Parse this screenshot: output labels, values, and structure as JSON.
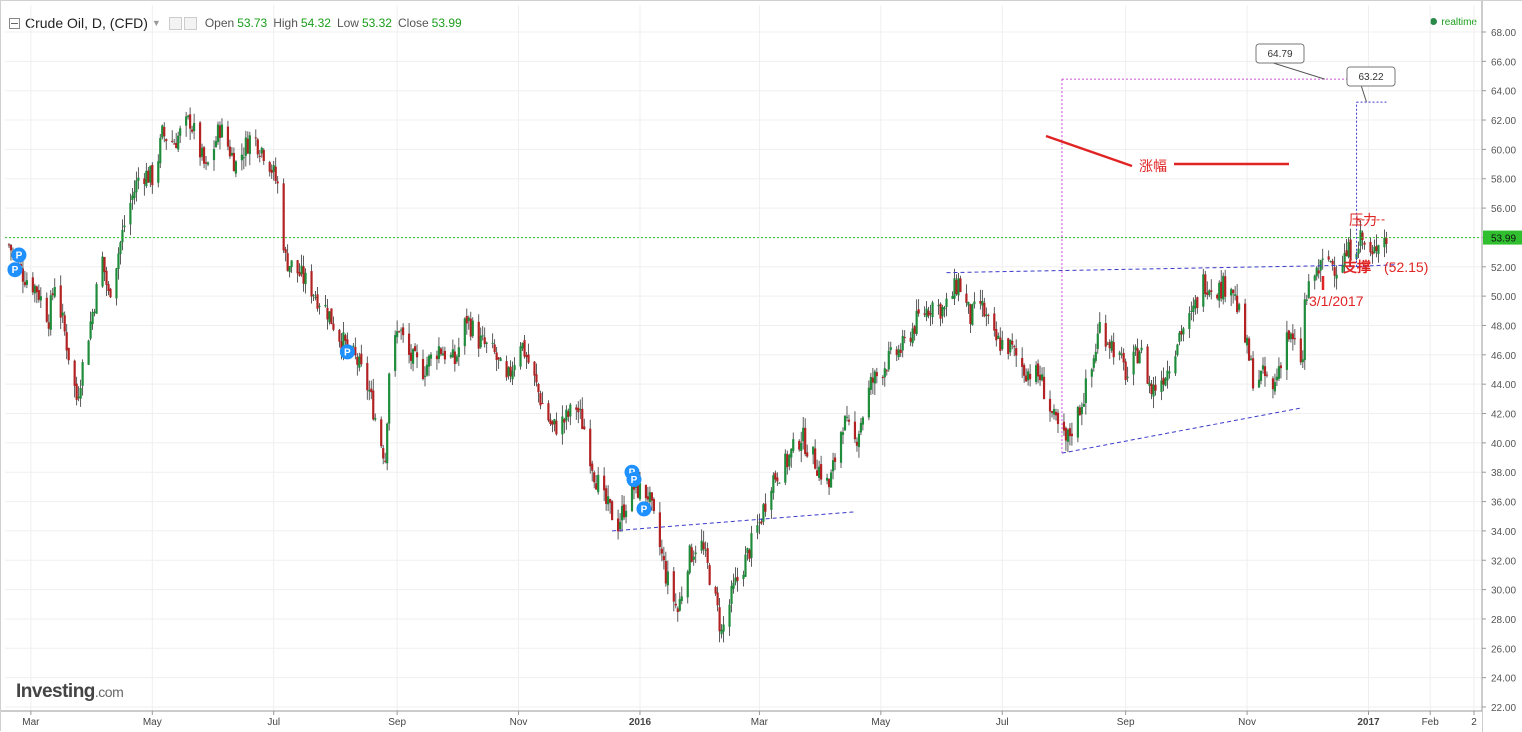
{
  "legend": {
    "title": "Crude Oil, D, (CFD)",
    "open_label": "Open",
    "open_value": "53.73",
    "high_label": "High",
    "high_value": "54.32",
    "low_label": "Low",
    "low_value": "53.32",
    "close_label": "Close",
    "close_value": "53.99"
  },
  "realtime_label": "realtime",
  "brand": {
    "name": "Investing",
    "suffix": ".com"
  },
  "colors": {
    "up": "#1e8c3a",
    "down": "#b22222",
    "grid": "#efefef",
    "last_price_line": "#2fbf2f",
    "trendline": "#3a3acb",
    "projection": "#c64ed6",
    "annotation": "#e02424",
    "marker": "#1e90ff"
  },
  "chart_data": {
    "type": "candlestick",
    "y_axis": {
      "min": 22,
      "max": 68,
      "ticks": [
        "22.00",
        "24.00",
        "26.00",
        "28.00",
        "30.00",
        "32.00",
        "34.00",
        "36.00",
        "38.00",
        "40.00",
        "42.00",
        "44.00",
        "46.00",
        "48.00",
        "50.00",
        "52.00",
        "54.00",
        "56.00",
        "58.00",
        "60.00",
        "62.00",
        "64.00",
        "66.00",
        "68.00"
      ]
    },
    "x_axis": {
      "start": "2015-02-16",
      "end": "2017-02-23",
      "ticks": [
        {
          "label": "Mar",
          "date": "2015-03-01",
          "bold": false
        },
        {
          "label": "May",
          "date": "2015-05-01",
          "bold": false
        },
        {
          "label": "Jul",
          "date": "2015-07-01",
          "bold": false
        },
        {
          "label": "Sep",
          "date": "2015-09-01",
          "bold": false
        },
        {
          "label": "Nov",
          "date": "2015-11-01",
          "bold": false
        },
        {
          "label": "2016",
          "date": "2016-01-01",
          "bold": true
        },
        {
          "label": "Mar",
          "date": "2016-03-01",
          "bold": false
        },
        {
          "label": "May",
          "date": "2016-05-01",
          "bold": false
        },
        {
          "label": "Jul",
          "date": "2016-07-01",
          "bold": false
        },
        {
          "label": "Sep",
          "date": "2016-09-01",
          "bold": false
        },
        {
          "label": "Nov",
          "date": "2016-11-01",
          "bold": false
        },
        {
          "label": "2017",
          "date": "2017-01-01",
          "bold": true
        },
        {
          "label": "Feb",
          "date": "2017-02-01",
          "bold": false
        },
        {
          "label": "2",
          "date": "2017-02-23",
          "bold": false
        }
      ]
    },
    "price_path": [
      {
        "date": "2015-02-18",
        "close": 53.5
      },
      {
        "date": "2015-02-25",
        "close": 51.5
      },
      {
        "date": "2015-03-04",
        "close": 50.5
      },
      {
        "date": "2015-03-10",
        "close": 48.5
      },
      {
        "date": "2015-03-13",
        "close": 51.0
      },
      {
        "date": "2015-03-18",
        "close": 47.5
      },
      {
        "date": "2015-03-24",
        "close": 43.0
      },
      {
        "date": "2015-03-30",
        "close": 47.5
      },
      {
        "date": "2015-04-06",
        "close": 52.5
      },
      {
        "date": "2015-04-09",
        "close": 50.0
      },
      {
        "date": "2015-04-14",
        "close": 53.0
      },
      {
        "date": "2015-04-18",
        "close": 55.5
      },
      {
        "date": "2015-04-25",
        "close": 58.5
      },
      {
        "date": "2015-05-02",
        "close": 58.0
      },
      {
        "date": "2015-05-06",
        "close": 61.0
      },
      {
        "date": "2015-05-12",
        "close": 60.5
      },
      {
        "date": "2015-05-20",
        "close": 62.0
      },
      {
        "date": "2015-05-28",
        "close": 58.5
      },
      {
        "date": "2015-06-04",
        "close": 61.5
      },
      {
        "date": "2015-06-12",
        "close": 59.0
      },
      {
        "date": "2015-06-20",
        "close": 61.0
      },
      {
        "date": "2015-06-28",
        "close": 59.5
      },
      {
        "date": "2015-07-03",
        "close": 57.5
      },
      {
        "date": "2015-07-07",
        "close": 52.5
      },
      {
        "date": "2015-07-14",
        "close": 51.5
      },
      {
        "date": "2015-07-20",
        "close": 50.5
      },
      {
        "date": "2015-07-28",
        "close": 49.0
      },
      {
        "date": "2015-08-04",
        "close": 47.0
      },
      {
        "date": "2015-08-12",
        "close": 45.5
      },
      {
        "date": "2015-08-18",
        "close": 43.5
      },
      {
        "date": "2015-08-24",
        "close": 40.0
      },
      {
        "date": "2015-08-26",
        "close": 39.0
      },
      {
        "date": "2015-08-28",
        "close": 45.0
      },
      {
        "date": "2015-09-02",
        "close": 48.0
      },
      {
        "date": "2015-09-06",
        "close": 46.0
      },
      {
        "date": "2015-09-14",
        "close": 45.0
      },
      {
        "date": "2015-09-22",
        "close": 46.5
      },
      {
        "date": "2015-09-30",
        "close": 45.5
      },
      {
        "date": "2015-10-06",
        "close": 48.5
      },
      {
        "date": "2015-10-12",
        "close": 47.0
      },
      {
        "date": "2015-10-20",
        "close": 46.0
      },
      {
        "date": "2015-10-26",
        "close": 44.0
      },
      {
        "date": "2015-11-02",
        "close": 47.0
      },
      {
        "date": "2015-11-06",
        "close": 45.5
      },
      {
        "date": "2015-11-12",
        "close": 43.0
      },
      {
        "date": "2015-11-18",
        "close": 41.0
      },
      {
        "date": "2015-11-24",
        "close": 41.5
      },
      {
        "date": "2015-11-30",
        "close": 42.5
      },
      {
        "date": "2015-12-04",
        "close": 41.0
      },
      {
        "date": "2015-12-09",
        "close": 38.0
      },
      {
        "date": "2015-12-14",
        "close": 36.0
      },
      {
        "date": "2015-12-21",
        "close": 34.5
      },
      {
        "date": "2015-12-28",
        "close": 37.0
      },
      {
        "date": "2016-01-05",
        "close": 36.5
      },
      {
        "date": "2016-01-10",
        "close": 33.5
      },
      {
        "date": "2016-01-14",
        "close": 31.0
      },
      {
        "date": "2016-01-20",
        "close": 28.5
      },
      {
        "date": "2016-01-25",
        "close": 32.0
      },
      {
        "date": "2016-01-31",
        "close": 33.5
      },
      {
        "date": "2016-02-05",
        "close": 31.0
      },
      {
        "date": "2016-02-09",
        "close": 28.5
      },
      {
        "date": "2016-02-11",
        "close": 27.0
      },
      {
        "date": "2016-02-17",
        "close": 30.0
      },
      {
        "date": "2016-02-23",
        "close": 32.0
      },
      {
        "date": "2016-03-01",
        "close": 34.5
      },
      {
        "date": "2016-03-07",
        "close": 37.5
      },
      {
        "date": "2016-03-14",
        "close": 38.5
      },
      {
        "date": "2016-03-22",
        "close": 40.5
      },
      {
        "date": "2016-03-30",
        "close": 38.5
      },
      {
        "date": "2016-04-05",
        "close": 37.0
      },
      {
        "date": "2016-04-12",
        "close": 41.5
      },
      {
        "date": "2016-04-18",
        "close": 40.0
      },
      {
        "date": "2016-04-26",
        "close": 44.0
      },
      {
        "date": "2016-05-04",
        "close": 45.5
      },
      {
        "date": "2016-05-12",
        "close": 46.5
      },
      {
        "date": "2016-05-20",
        "close": 48.5
      },
      {
        "date": "2016-05-27",
        "close": 49.5
      },
      {
        "date": "2016-06-02",
        "close": 49.0
      },
      {
        "date": "2016-06-09",
        "close": 51.0
      },
      {
        "date": "2016-06-15",
        "close": 48.5
      },
      {
        "date": "2016-06-20",
        "close": 49.5
      },
      {
        "date": "2016-06-27",
        "close": 47.0
      },
      {
        "date": "2016-07-05",
        "close": 46.5
      },
      {
        "date": "2016-07-12",
        "close": 45.0
      },
      {
        "date": "2016-07-20",
        "close": 44.5
      },
      {
        "date": "2016-07-27",
        "close": 41.5
      },
      {
        "date": "2016-08-02",
        "close": 40.0
      },
      {
        "date": "2016-08-08",
        "close": 42.0
      },
      {
        "date": "2016-08-15",
        "close": 45.0
      },
      {
        "date": "2016-08-19",
        "close": 48.0
      },
      {
        "date": "2016-08-26",
        "close": 46.5
      },
      {
        "date": "2016-09-02",
        "close": 44.5
      },
      {
        "date": "2016-09-08",
        "close": 46.5
      },
      {
        "date": "2016-09-14",
        "close": 43.5
      },
      {
        "date": "2016-09-22",
        "close": 45.0
      },
      {
        "date": "2016-09-28",
        "close": 47.5
      },
      {
        "date": "2016-10-04",
        "close": 48.5
      },
      {
        "date": "2016-10-10",
        "close": 51.0
      },
      {
        "date": "2016-10-18",
        "close": 50.5
      },
      {
        "date": "2016-10-24",
        "close": 51.0
      },
      {
        "date": "2016-10-31",
        "close": 47.0
      },
      {
        "date": "2016-11-04",
        "close": 44.5
      },
      {
        "date": "2016-11-10",
        "close": 44.5
      },
      {
        "date": "2016-11-14",
        "close": 43.5
      },
      {
        "date": "2016-11-21",
        "close": 47.5
      },
      {
        "date": "2016-11-29",
        "close": 45.5
      },
      {
        "date": "2016-11-30",
        "close": 49.5
      },
      {
        "date": "2016-12-05",
        "close": 51.5
      },
      {
        "date": "2016-12-12",
        "close": 52.5
      },
      {
        "date": "2016-12-16",
        "close": 52.0
      },
      {
        "date": "2016-12-22",
        "close": 53.0
      },
      {
        "date": "2016-12-28",
        "close": 54.0
      },
      {
        "date": "2017-01-03",
        "close": 52.5
      },
      {
        "date": "2017-01-06",
        "close": 54.0
      },
      {
        "date": "2017-01-10",
        "close": 53.99
      }
    ],
    "last_price": 53.99,
    "markers": [
      {
        "label": "P",
        "date": "2015-02-23",
        "price": 52.8
      },
      {
        "label": "P",
        "date": "2015-02-21",
        "price": 51.8
      },
      {
        "label": "P",
        "date": "2015-08-07",
        "price": 46.2
      },
      {
        "label": "P",
        "date": "2015-12-28",
        "price": 38.0
      },
      {
        "label": "P",
        "date": "2015-12-29",
        "price": 37.5
      },
      {
        "label": "P",
        "date": "2016-01-03",
        "price": 35.5
      }
    ],
    "annotations": {
      "projection_high": "64.79",
      "projection_mid": "63.22",
      "rise_label": "涨幅",
      "resistance_label": "压力",
      "support_label": "支撑",
      "support_value": "(52.15)",
      "date_label": "3/1/2017"
    }
  }
}
